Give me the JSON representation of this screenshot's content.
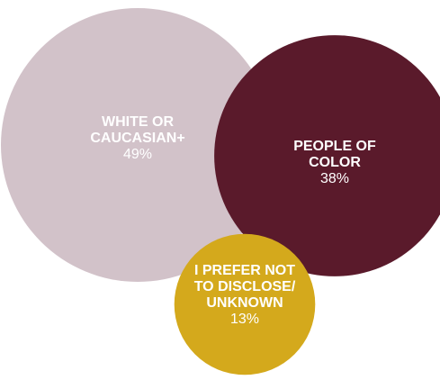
{
  "chart_data": {
    "type": "bubble",
    "series": [
      {
        "label_lines": [
          "WHITE OR",
          "CAUCASIAN+"
        ],
        "value": 49,
        "value_label": "49%",
        "color": "#d2c2c9"
      },
      {
        "label_lines": [
          "PEOPLE OF",
          "COLOR"
        ],
        "value": 38,
        "value_label": "38%",
        "color": "#5a1a2b"
      },
      {
        "label_lines": [
          "I PREFER NOT",
          "TO DISCLOSE/",
          "UNKNOWN"
        ],
        "value": 13,
        "value_label": "13%",
        "color": "#d4a91c"
      }
    ]
  }
}
